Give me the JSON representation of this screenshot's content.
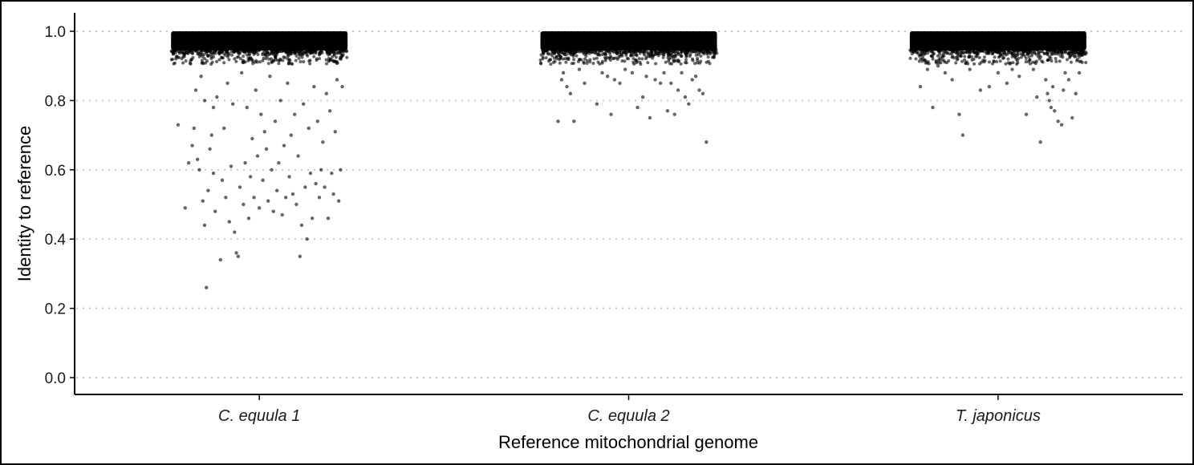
{
  "chart_data": {
    "type": "scatter",
    "subtype": "jittered strip plot",
    "xlabel": "Reference mitochondrial genome",
    "ylabel": "Identity to reference",
    "categories": [
      "C. equula 1",
      "C. equula 2",
      "T. japonicus"
    ],
    "ylim": [
      0.0,
      1.0
    ],
    "yticks": [
      0.0,
      0.2,
      0.4,
      0.6,
      0.8,
      1.0
    ],
    "ytick_labels": [
      "0.0",
      "0.2",
      "0.4",
      "0.6",
      "0.8",
      "1.0"
    ],
    "grid": "horizontal dotted at y ticks",
    "point_color": "#000000",
    "point_opacity": 0.6,
    "series": [
      {
        "category": "C. equula 1",
        "dense_band": [
          0.93,
          1.0
        ],
        "outliers": [
          [
            -0.46,
            0.73
          ],
          [
            -0.42,
            0.49
          ],
          [
            -0.4,
            0.62
          ],
          [
            -0.38,
            0.67
          ],
          [
            -0.37,
            0.72
          ],
          [
            -0.36,
            0.83
          ],
          [
            -0.35,
            0.63
          ],
          [
            -0.34,
            0.6
          ],
          [
            -0.33,
            0.87
          ],
          [
            -0.32,
            0.51
          ],
          [
            -0.31,
            0.44
          ],
          [
            -0.31,
            0.8
          ],
          [
            -0.3,
            0.26
          ],
          [
            -0.29,
            0.54
          ],
          [
            -0.28,
            0.66
          ],
          [
            -0.27,
            0.7
          ],
          [
            -0.26,
            0.59
          ],
          [
            -0.26,
            0.78
          ],
          [
            -0.25,
            0.48
          ],
          [
            -0.24,
            0.81
          ],
          [
            -0.22,
            0.34
          ],
          [
            -0.21,
            0.57
          ],
          [
            -0.2,
            0.72
          ],
          [
            -0.19,
            0.52
          ],
          [
            -0.18,
            0.85
          ],
          [
            -0.17,
            0.45
          ],
          [
            -0.16,
            0.61
          ],
          [
            -0.15,
            0.79
          ],
          [
            -0.14,
            0.42
          ],
          [
            -0.13,
            0.36
          ],
          [
            -0.12,
            0.35
          ],
          [
            -0.11,
            0.55
          ],
          [
            -0.1,
            0.88
          ],
          [
            -0.09,
            0.5
          ],
          [
            -0.08,
            0.62
          ],
          [
            -0.07,
            0.78
          ],
          [
            -0.06,
            0.46
          ],
          [
            -0.05,
            0.58
          ],
          [
            -0.04,
            0.69
          ],
          [
            -0.03,
            0.52
          ],
          [
            -0.02,
            0.83
          ],
          [
            -0.01,
            0.64
          ],
          [
            0.0,
            0.49
          ],
          [
            0.01,
            0.76
          ],
          [
            0.02,
            0.57
          ],
          [
            0.03,
            0.71
          ],
          [
            0.04,
            0.66
          ],
          [
            0.05,
            0.51
          ],
          [
            0.06,
            0.87
          ],
          [
            0.07,
            0.6
          ],
          [
            0.08,
            0.48
          ],
          [
            0.09,
            0.74
          ],
          [
            0.1,
            0.54
          ],
          [
            0.11,
            0.62
          ],
          [
            0.12,
            0.8
          ],
          [
            0.13,
            0.47
          ],
          [
            0.14,
            0.67
          ],
          [
            0.15,
            0.52
          ],
          [
            0.16,
            0.85
          ],
          [
            0.17,
            0.58
          ],
          [
            0.18,
            0.7
          ],
          [
            0.19,
            0.53
          ],
          [
            0.2,
            0.76
          ],
          [
            0.21,
            0.5
          ],
          [
            0.22,
            0.64
          ],
          [
            0.23,
            0.35
          ],
          [
            0.24,
            0.44
          ],
          [
            0.25,
            0.79
          ],
          [
            0.26,
            0.55
          ],
          [
            0.27,
            0.4
          ],
          [
            0.28,
            0.72
          ],
          [
            0.29,
            0.59
          ],
          [
            0.3,
            0.46
          ],
          [
            0.31,
            0.84
          ],
          [
            0.32,
            0.56
          ],
          [
            0.33,
            0.74
          ],
          [
            0.34,
            0.52
          ],
          [
            0.35,
            0.6
          ],
          [
            0.36,
            0.68
          ],
          [
            0.37,
            0.55
          ],
          [
            0.38,
            0.82
          ],
          [
            0.39,
            0.46
          ],
          [
            0.4,
            0.77
          ],
          [
            0.41,
            0.59
          ],
          [
            0.42,
            0.53
          ],
          [
            0.43,
            0.71
          ],
          [
            0.44,
            0.86
          ],
          [
            0.45,
            0.51
          ],
          [
            0.46,
            0.6
          ],
          [
            0.47,
            0.84
          ]
        ]
      },
      {
        "category": "C. equula 2",
        "dense_band": [
          0.93,
          1.0
        ],
        "outliers": [
          [
            -0.4,
            0.74
          ],
          [
            -0.38,
            0.86
          ],
          [
            -0.37,
            0.88
          ],
          [
            -0.35,
            0.84
          ],
          [
            -0.33,
            0.82
          ],
          [
            -0.31,
            0.74
          ],
          [
            -0.28,
            0.89
          ],
          [
            -0.25,
            0.85
          ],
          [
            -0.18,
            0.79
          ],
          [
            -0.15,
            0.88
          ],
          [
            -0.12,
            0.87
          ],
          [
            -0.1,
            0.76
          ],
          [
            -0.08,
            0.86
          ],
          [
            -0.05,
            0.85
          ],
          [
            -0.02,
            0.89
          ],
          [
            0.02,
            0.88
          ],
          [
            0.05,
            0.78
          ],
          [
            0.08,
            0.81
          ],
          [
            0.1,
            0.87
          ],
          [
            0.12,
            0.75
          ],
          [
            0.15,
            0.86
          ],
          [
            0.18,
            0.85
          ],
          [
            0.2,
            0.88
          ],
          [
            0.22,
            0.77
          ],
          [
            0.24,
            0.85
          ],
          [
            0.26,
            0.76
          ],
          [
            0.28,
            0.83
          ],
          [
            0.3,
            0.88
          ],
          [
            0.32,
            0.81
          ],
          [
            0.34,
            0.79
          ],
          [
            0.36,
            0.86
          ],
          [
            0.38,
            0.87
          ],
          [
            0.4,
            0.83
          ],
          [
            0.42,
            0.82
          ],
          [
            0.44,
            0.68
          ]
        ]
      },
      {
        "category": "T. japonicus",
        "dense_band": [
          0.93,
          1.0
        ],
        "outliers": [
          [
            -0.44,
            0.84
          ],
          [
            -0.4,
            0.89
          ],
          [
            -0.37,
            0.78
          ],
          [
            -0.34,
            0.9
          ],
          [
            -0.3,
            0.88
          ],
          [
            -0.26,
            0.86
          ],
          [
            -0.22,
            0.76
          ],
          [
            -0.2,
            0.7
          ],
          [
            -0.16,
            0.89
          ],
          [
            -0.1,
            0.83
          ],
          [
            -0.05,
            0.84
          ],
          [
            0.0,
            0.88
          ],
          [
            0.05,
            0.85
          ],
          [
            0.08,
            0.89
          ],
          [
            0.12,
            0.87
          ],
          [
            0.16,
            0.76
          ],
          [
            0.2,
            0.89
          ],
          [
            0.22,
            0.81
          ],
          [
            0.24,
            0.68
          ],
          [
            0.27,
            0.86
          ],
          [
            0.28,
            0.82
          ],
          [
            0.29,
            0.8
          ],
          [
            0.3,
            0.78
          ],
          [
            0.31,
            0.84
          ],
          [
            0.32,
            0.77
          ],
          [
            0.34,
            0.74
          ],
          [
            0.36,
            0.73
          ],
          [
            0.37,
            0.83
          ],
          [
            0.38,
            0.88
          ],
          [
            0.4,
            0.86
          ],
          [
            0.42,
            0.75
          ],
          [
            0.44,
            0.82
          ],
          [
            0.46,
            0.88
          ]
        ]
      }
    ]
  }
}
